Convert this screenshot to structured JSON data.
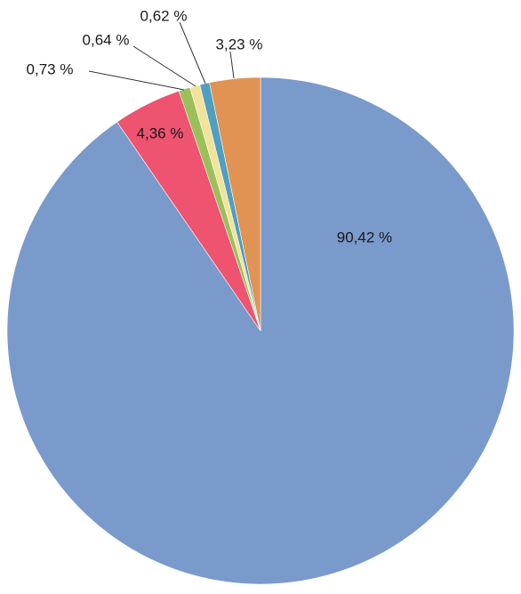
{
  "chart_data": {
    "type": "pie",
    "title": "",
    "start_angle_deg": 0,
    "direction": "clockwise",
    "legend": "none",
    "slices": [
      {
        "label": "90,42 %",
        "value": 90.42,
        "color": "#7a9acc"
      },
      {
        "label": "4,36 %",
        "value": 4.36,
        "color": "#ee5370"
      },
      {
        "label": "0,73 %",
        "value": 0.73,
        "color": "#9bc05a"
      },
      {
        "label": "0,64 %",
        "value": 0.64,
        "color": "#f2e39a"
      },
      {
        "label": "0,62 %",
        "value": 0.62,
        "color": "#4f9fbf"
      },
      {
        "label": "3,23 %",
        "value": 3.23,
        "color": "#e09353"
      }
    ]
  }
}
